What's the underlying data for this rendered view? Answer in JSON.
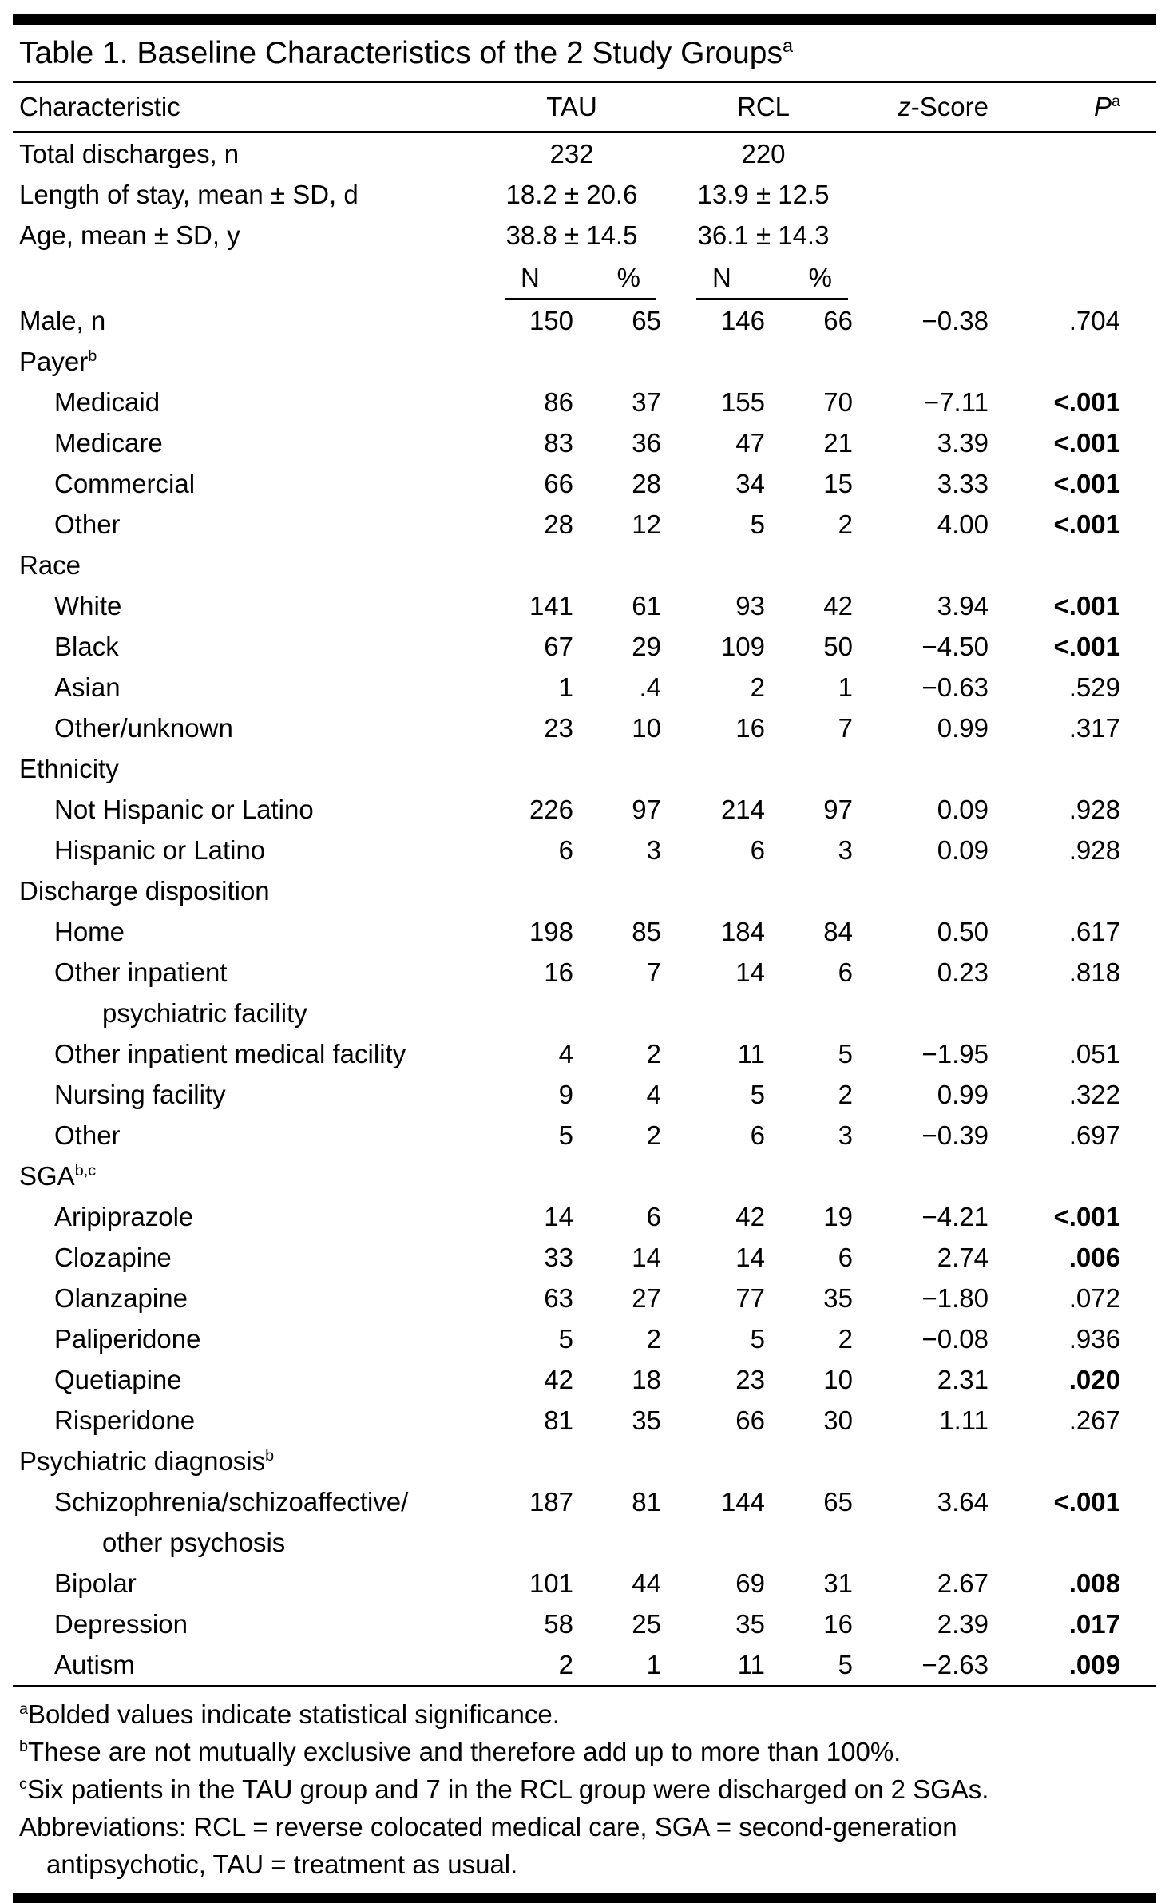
{
  "title": {
    "text": "Table 1. Baseline Characteristics of the 2 Study Groups",
    "sup": "a"
  },
  "header": {
    "characteristic": "Characteristic",
    "tau": "TAU",
    "rcl": "RCL",
    "z_italic": "z",
    "z_rest": "-Score",
    "p": "P",
    "p_sup": "a",
    "n": "N",
    "pct": "%"
  },
  "rows": [
    {
      "t": "top",
      "label": "Total discharges, n",
      "tau": "232",
      "rcl": "220"
    },
    {
      "t": "top",
      "label": "Length of stay, mean ± SD, d",
      "tau": "18.2 ± 20.6",
      "rcl": "13.9 ± 12.5"
    },
    {
      "t": "top",
      "label": "Age, mean ± SD, y",
      "tau": "38.8 ± 14.5",
      "rcl": "36.1 ± 14.3"
    },
    {
      "t": "np"
    },
    {
      "t": "data",
      "i": 0,
      "label": "Male, n",
      "tau_n": "150",
      "tau_pct": "65",
      "rcl_n": "146",
      "rcl_pct": "66",
      "z": "−0.38",
      "p": ".704",
      "b": false
    },
    {
      "t": "sec",
      "label": "Payer",
      "sup": "b"
    },
    {
      "t": "data",
      "i": 1,
      "label": "Medicaid",
      "tau_n": "86",
      "tau_pct": "37",
      "rcl_n": "155",
      "rcl_pct": "70",
      "z": "−7.11",
      "p": "<.001",
      "b": true
    },
    {
      "t": "data",
      "i": 1,
      "label": "Medicare",
      "tau_n": "83",
      "tau_pct": "36",
      "rcl_n": "47",
      "rcl_pct": "21",
      "z": "3.39",
      "p": "<.001",
      "b": true
    },
    {
      "t": "data",
      "i": 1,
      "label": "Commercial",
      "tau_n": "66",
      "tau_pct": "28",
      "rcl_n": "34",
      "rcl_pct": "15",
      "z": "3.33",
      "p": "<.001",
      "b": true
    },
    {
      "t": "data",
      "i": 1,
      "label": "Other",
      "tau_n": "28",
      "tau_pct": "12",
      "rcl_n": "5",
      "rcl_pct": "2",
      "z": "4.00",
      "p": "<.001",
      "b": true
    },
    {
      "t": "sec",
      "label": "Race"
    },
    {
      "t": "data",
      "i": 1,
      "label": "White",
      "tau_n": "141",
      "tau_pct": "61",
      "rcl_n": "93",
      "rcl_pct": "42",
      "z": "3.94",
      "p": "<.001",
      "b": true
    },
    {
      "t": "data",
      "i": 1,
      "label": "Black",
      "tau_n": "67",
      "tau_pct": "29",
      "rcl_n": "109",
      "rcl_pct": "50",
      "z": "−4.50",
      "p": "<.001",
      "b": true
    },
    {
      "t": "data",
      "i": 1,
      "label": "Asian",
      "tau_n": "1",
      "tau_pct": ".4",
      "rcl_n": "2",
      "rcl_pct": "1",
      "z": "−0.63",
      "p": ".529",
      "b": false
    },
    {
      "t": "data",
      "i": 1,
      "label": "Other/unknown",
      "tau_n": "23",
      "tau_pct": "10",
      "rcl_n": "16",
      "rcl_pct": "7",
      "z": "0.99",
      "p": ".317",
      "b": false
    },
    {
      "t": "sec",
      "label": "Ethnicity"
    },
    {
      "t": "data",
      "i": 1,
      "label": "Not Hispanic or Latino",
      "tau_n": "226",
      "tau_pct": "97",
      "rcl_n": "214",
      "rcl_pct": "97",
      "z": "0.09",
      "p": ".928",
      "b": false
    },
    {
      "t": "data",
      "i": 1,
      "label": "Hispanic or Latino",
      "tau_n": "6",
      "tau_pct": "3",
      "rcl_n": "6",
      "rcl_pct": "3",
      "z": "0.09",
      "p": ".928",
      "b": false
    },
    {
      "t": "sec",
      "label": "Discharge disposition"
    },
    {
      "t": "data",
      "i": 1,
      "label": "Home",
      "tau_n": "198",
      "tau_pct": "85",
      "rcl_n": "184",
      "rcl_pct": "84",
      "z": "0.50",
      "p": ".617",
      "b": false
    },
    {
      "t": "data",
      "i": 1,
      "label": "Other inpatient",
      "label2": "psychiatric facility",
      "tau_n": "16",
      "tau_pct": "7",
      "rcl_n": "14",
      "rcl_pct": "6",
      "z": "0.23",
      "p": ".818",
      "b": false
    },
    {
      "t": "data",
      "i": 1,
      "label": "Other inpatient medical facility",
      "tau_n": "4",
      "tau_pct": "2",
      "rcl_n": "11",
      "rcl_pct": "5",
      "z": "−1.95",
      "p": ".051",
      "b": false
    },
    {
      "t": "data",
      "i": 1,
      "label": "Nursing facility",
      "tau_n": "9",
      "tau_pct": "4",
      "rcl_n": "5",
      "rcl_pct": "2",
      "z": "0.99",
      "p": ".322",
      "b": false
    },
    {
      "t": "data",
      "i": 1,
      "label": "Other",
      "tau_n": "5",
      "tau_pct": "2",
      "rcl_n": "6",
      "rcl_pct": "3",
      "z": "−0.39",
      "p": ".697",
      "b": false
    },
    {
      "t": "sec",
      "label": "SGA",
      "sup": "b,c"
    },
    {
      "t": "data",
      "i": 1,
      "label": "Aripiprazole",
      "tau_n": "14",
      "tau_pct": "6",
      "rcl_n": "42",
      "rcl_pct": "19",
      "z": "−4.21",
      "p": "<.001",
      "b": true
    },
    {
      "t": "data",
      "i": 1,
      "label": "Clozapine",
      "tau_n": "33",
      "tau_pct": "14",
      "rcl_n": "14",
      "rcl_pct": "6",
      "z": "2.74",
      "p": ".006",
      "b": true
    },
    {
      "t": "data",
      "i": 1,
      "label": "Olanzapine",
      "tau_n": "63",
      "tau_pct": "27",
      "rcl_n": "77",
      "rcl_pct": "35",
      "z": "−1.80",
      "p": ".072",
      "b": false
    },
    {
      "t": "data",
      "i": 1,
      "label": "Paliperidone",
      "tau_n": "5",
      "tau_pct": "2",
      "rcl_n": "5",
      "rcl_pct": "2",
      "z": "−0.08",
      "p": ".936",
      "b": false
    },
    {
      "t": "data",
      "i": 1,
      "label": "Quetiapine",
      "tau_n": "42",
      "tau_pct": "18",
      "rcl_n": "23",
      "rcl_pct": "10",
      "z": "2.31",
      "p": ".020",
      "b": true
    },
    {
      "t": "data",
      "i": 1,
      "label": "Risperidone",
      "tau_n": "81",
      "tau_pct": "35",
      "rcl_n": "66",
      "rcl_pct": "30",
      "z": "1.11",
      "p": ".267",
      "b": false
    },
    {
      "t": "sec",
      "label": "Psychiatric diagnosis",
      "sup": "b"
    },
    {
      "t": "data",
      "i": 1,
      "label": "Schizophrenia/schizoaffective/",
      "label2": "other psychosis",
      "tau_n": "187",
      "tau_pct": "81",
      "rcl_n": "144",
      "rcl_pct": "65",
      "z": "3.64",
      "p": "<.001",
      "b": true
    },
    {
      "t": "data",
      "i": 1,
      "label": "Bipolar",
      "tau_n": "101",
      "tau_pct": "44",
      "rcl_n": "69",
      "rcl_pct": "31",
      "z": "2.67",
      "p": ".008",
      "b": true
    },
    {
      "t": "data",
      "i": 1,
      "label": "Depression",
      "tau_n": "58",
      "tau_pct": "25",
      "rcl_n": "35",
      "rcl_pct": "16",
      "z": "2.39",
      "p": ".017",
      "b": true
    },
    {
      "t": "data",
      "i": 1,
      "label": "Autism",
      "tau_n": "2",
      "tau_pct": "1",
      "rcl_n": "11",
      "rcl_pct": "5",
      "z": "−2.63",
      "p": ".009",
      "b": true
    }
  ],
  "footnotes": [
    {
      "sup": "a",
      "text": "Bolded values indicate statistical significance."
    },
    {
      "sup": "b",
      "text": "These are not mutually exclusive and therefore add up to more than 100%."
    },
    {
      "sup": "c",
      "text": "Six patients in the TAU group and 7 in the RCL group were discharged on 2 SGAs."
    },
    {
      "sup": "",
      "text": "Abbreviations: RCL = reverse colocated medical care, SGA = second-generation",
      "text2": "antipsychotic, TAU = treatment as usual."
    }
  ],
  "colors": {
    "background": "#ffffff",
    "text": "#000000",
    "rule": "#000000"
  }
}
